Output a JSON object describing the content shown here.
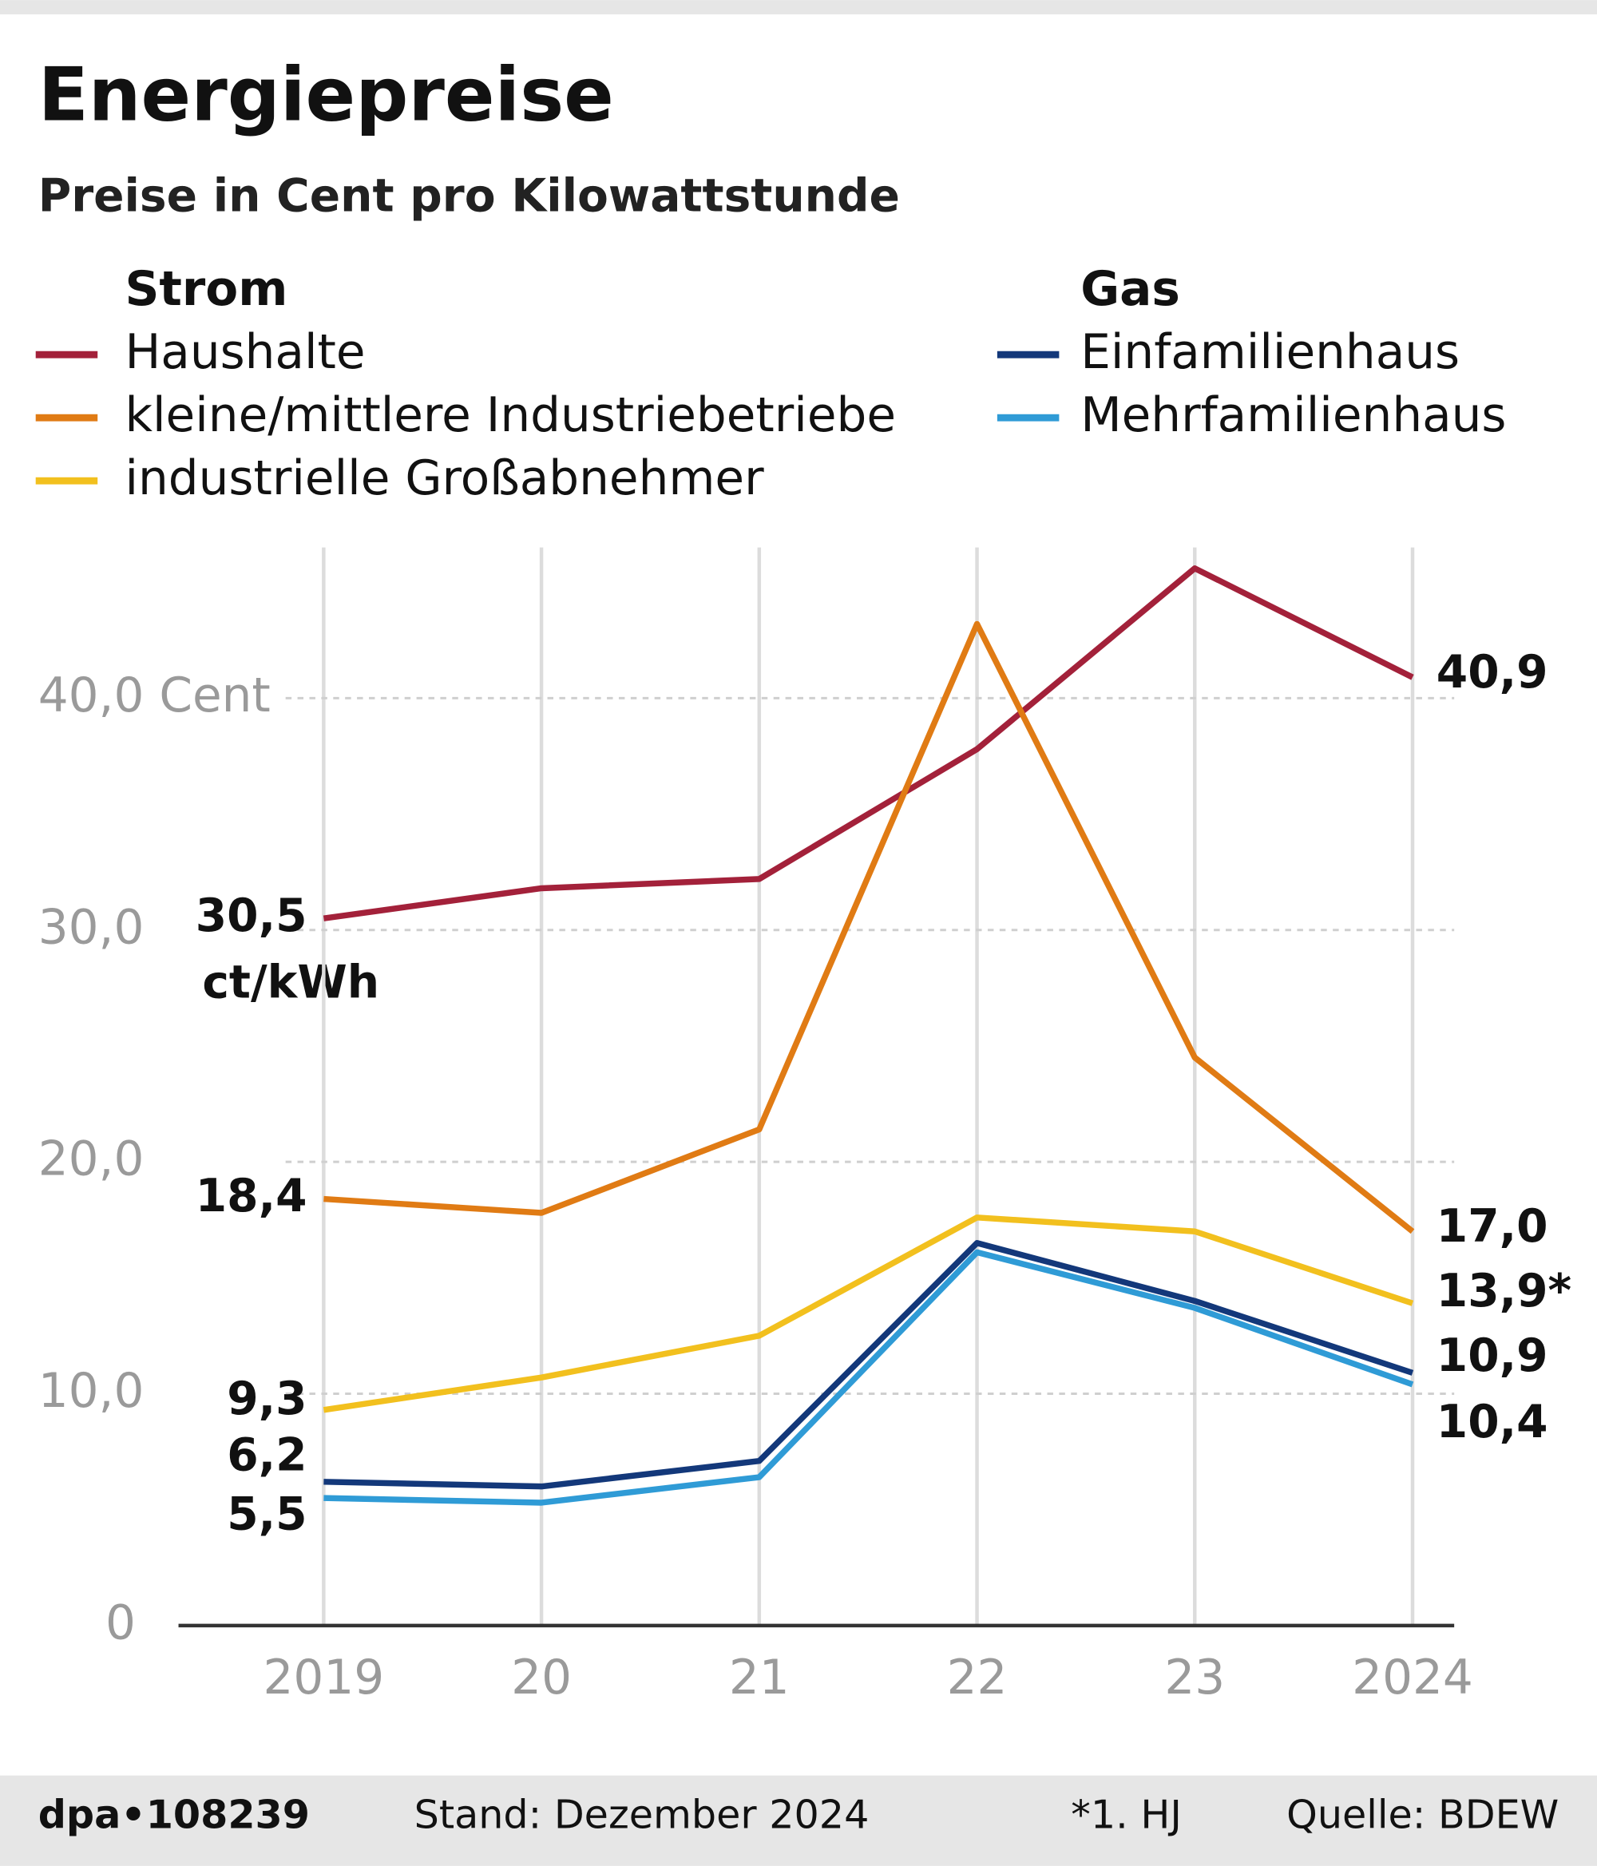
{
  "chart_data": {
    "type": "line",
    "title": "Energiepreise",
    "subtitle": "Preise in Cent pro Kilowattstunde",
    "categories": [
      "2019",
      "20",
      "21",
      "22",
      "23",
      "2024"
    ],
    "ylim": [
      0,
      46.5
    ],
    "yticks": [
      {
        "value": 0,
        "label": "0"
      },
      {
        "value": 10,
        "label": "10,0"
      },
      {
        "value": 20,
        "label": "20,0"
      },
      {
        "value": 30,
        "label": "30,0"
      },
      {
        "value": 40,
        "label": "40,0 Cent"
      }
    ],
    "grid": true,
    "legend_groups": [
      "Strom",
      "Gas"
    ],
    "series": [
      {
        "name": "Haushalte",
        "group": "Strom",
        "color": "#a3213a",
        "values": [
          30.5,
          31.8,
          32.2,
          37.8,
          45.6,
          40.9
        ],
        "value_labels": [
          "30,5",
          null,
          null,
          null,
          null,
          "40,9"
        ]
      },
      {
        "name": "kleine/mittlere Industriebetriebe",
        "group": "Strom",
        "color": "#e07b14",
        "values": [
          18.4,
          17.8,
          21.4,
          43.2,
          24.5,
          17.0
        ],
        "value_labels": [
          "18,4",
          null,
          null,
          null,
          null,
          "17,0"
        ]
      },
      {
        "name": "industrielle Großabnehmer",
        "group": "Strom",
        "color": "#f2c01e",
        "values": [
          9.3,
          10.7,
          12.5,
          17.6,
          17.0,
          13.9
        ],
        "value_labels": [
          "9,3",
          null,
          null,
          null,
          null,
          "13,9*"
        ]
      },
      {
        "name": "Einfamilienhaus",
        "group": "Gas",
        "color": "#13387a",
        "values": [
          6.2,
          6.0,
          7.1,
          16.5,
          14.0,
          10.9
        ],
        "value_labels": [
          "6,2",
          null,
          null,
          null,
          null,
          "10,9"
        ]
      },
      {
        "name": "Mehrfamilienhaus",
        "group": "Gas",
        "color": "#2f9bd6",
        "values": [
          5.5,
          5.3,
          6.4,
          16.1,
          13.7,
          10.4
        ],
        "value_labels": [
          "5,5",
          null,
          null,
          null,
          null,
          "10,4"
        ]
      }
    ],
    "unit_annotation": "ct/kWh",
    "footer": {
      "agency": "dpa•108239",
      "date": "Stand: Dezember 2024",
      "note": "*1. HJ",
      "source": "Quelle: BDEW"
    }
  }
}
